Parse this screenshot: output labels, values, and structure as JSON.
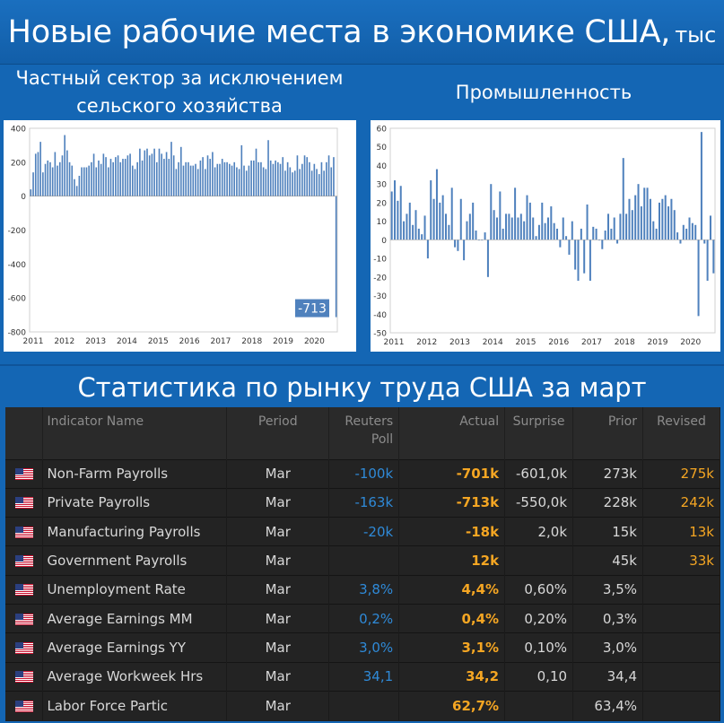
{
  "header": {
    "title": "Новые рабочие места в экономике США,",
    "title_suffix": "тыс"
  },
  "left_chart_title": [
    "Частный сектор за исключением",
    "сельского хозяйства"
  ],
  "right_chart_title": "Промышленность",
  "section_title": "Статистика по рынку труда США за март",
  "table": {
    "columns": [
      "Indicator Name",
      "Period",
      "Reuters Poll",
      "Actual",
      "Surprise",
      "Prior",
      "Revised"
    ],
    "rows": [
      {
        "flag": "us-flag-icon",
        "name": "Non-Farm Payrolls",
        "period": "Mar",
        "poll": "-100k",
        "actual": "-701k",
        "surprise": "-601,0k",
        "prior": "273k",
        "revised": "275k"
      },
      {
        "flag": "us-flag-icon",
        "name": "Private Payrolls",
        "period": "Mar",
        "poll": "-163k",
        "actual": "-713k",
        "surprise": "-550,0k",
        "prior": "228k",
        "revised": "242k"
      },
      {
        "flag": "us-flag-icon",
        "name": "Manufacturing Payrolls",
        "period": "Mar",
        "poll": "-20k",
        "actual": "-18k",
        "surprise": "2,0k",
        "prior": "15k",
        "revised": "13k"
      },
      {
        "flag": "us-flag-icon",
        "name": "Government Payrolls",
        "period": "Mar",
        "poll": "",
        "actual": "12k",
        "surprise": "",
        "prior": "45k",
        "revised": "33k"
      },
      {
        "flag": "us-flag-icon",
        "name": "Unemployment Rate",
        "period": "Mar",
        "poll": "3,8%",
        "actual": "4,4%",
        "surprise": "0,60%",
        "prior": "3,5%",
        "revised": ""
      },
      {
        "flag": "us-flag-icon",
        "name": "Average Earnings MM",
        "period": "Mar",
        "poll": "0,2%",
        "actual": "0,4%",
        "surprise": "0,20%",
        "prior": "0,3%",
        "revised": ""
      },
      {
        "flag": "us-flag-icon",
        "name": "Average Earnings YY",
        "period": "Mar",
        "poll": "3,0%",
        "actual": "3,1%",
        "surprise": "0,10%",
        "prior": "3,0%",
        "revised": ""
      },
      {
        "flag": "us-flag-icon",
        "name": "Average Workweek Hrs",
        "period": "Mar",
        "poll": "34,1",
        "actual": "34,2",
        "surprise": "0,10",
        "prior": "34,4",
        "revised": ""
      },
      {
        "flag": "us-flag-icon",
        "name": "Labor Force Partic",
        "period": "Mar",
        "poll": "",
        "actual": "62,7%",
        "surprise": "",
        "prior": "63,4%",
        "revised": ""
      }
    ]
  },
  "colors": {
    "bar": "#4f81bd",
    "banner": "#1466b4",
    "table_bg": "#1e1e1e",
    "poll": "#2f8ad8",
    "actual": "#f5a623"
  },
  "chart_data": [
    {
      "type": "bar",
      "title": "Частный сектор за исключением сельского хозяйства",
      "xlabel": "",
      "ylabel": "",
      "ylim": [
        -800,
        400
      ],
      "yticks": [
        400,
        200,
        0,
        -200,
        -400,
        -600,
        -800
      ],
      "xticks": [
        "2011",
        "2012",
        "2013",
        "2014",
        "2015",
        "2016",
        "2017",
        "2018",
        "2019",
        "2020"
      ],
      "callout": "-713",
      "values": [
        40,
        140,
        250,
        260,
        320,
        140,
        190,
        210,
        200,
        170,
        260,
        180,
        200,
        240,
        360,
        270,
        200,
        180,
        100,
        60,
        120,
        170,
        170,
        170,
        180,
        200,
        250,
        170,
        210,
        190,
        250,
        230,
        170,
        220,
        200,
        230,
        240,
        200,
        220,
        220,
        240,
        250,
        180,
        160,
        200,
        280,
        210,
        270,
        280,
        240,
        250,
        280,
        200,
        280,
        250,
        220,
        260,
        220,
        320,
        240,
        160,
        200,
        290,
        180,
        200,
        200,
        180,
        180,
        190,
        160,
        210,
        230,
        160,
        240,
        220,
        260,
        170,
        190,
        190,
        220,
        200,
        200,
        190,
        180,
        200,
        170,
        160,
        300,
        180,
        150,
        180,
        210,
        210,
        280,
        200,
        200,
        170,
        160,
        330,
        210,
        190,
        210,
        200,
        190,
        230,
        150,
        200,
        170,
        140,
        150,
        240,
        160,
        190,
        240,
        230,
        200,
        150,
        190,
        160,
        130,
        200,
        150,
        200,
        240,
        170,
        230,
        -713
      ]
    },
    {
      "type": "bar",
      "title": "Промышленность",
      "xlabel": "",
      "ylabel": "",
      "ylim": [
        -50,
        60
      ],
      "yticks": [
        60,
        50,
        40,
        30,
        20,
        10,
        0,
        -10,
        -20,
        -30,
        -40,
        -50
      ],
      "xticks": [
        "2011",
        "2012",
        "2013",
        "2014",
        "2015",
        "2016",
        "2017",
        "2018",
        "2019",
        "2020"
      ],
      "values": [
        26,
        32,
        21,
        29,
        10,
        14,
        20,
        8,
        16,
        6,
        3,
        13,
        -10,
        32,
        22,
        38,
        20,
        24,
        14,
        8,
        28,
        -4,
        -6,
        22,
        -11,
        10,
        14,
        20,
        5,
        0,
        0,
        4,
        -20,
        30,
        16,
        12,
        26,
        6,
        14,
        14,
        12,
        28,
        12,
        14,
        10,
        24,
        20,
        12,
        2,
        8,
        20,
        9,
        12,
        18,
        9,
        6,
        -4,
        12,
        2,
        -8,
        10,
        -16,
        -22,
        6,
        -18,
        19,
        -22,
        7,
        6,
        0,
        -5,
        5,
        14,
        6,
        12,
        -2,
        14,
        44,
        14,
        22,
        16,
        24,
        30,
        18,
        28,
        28,
        22,
        10,
        6,
        20,
        22,
        24,
        18,
        22,
        16,
        4,
        -2,
        8,
        6,
        12,
        9,
        8,
        -41,
        58,
        -2,
        -22,
        13,
        -18
      ]
    }
  ]
}
